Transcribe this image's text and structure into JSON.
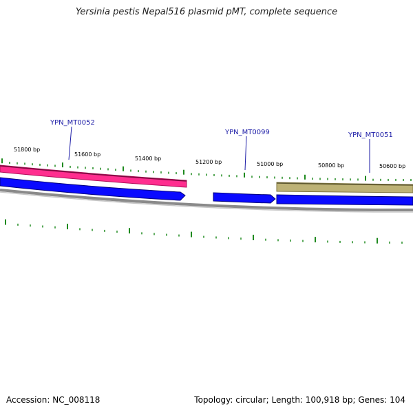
{
  "title": "Yersinia pestis Nepal516 plasmid pMT, complete sequence",
  "footer": {
    "accession": "Accession: NC_008118",
    "summary": "Topology: circular; Length: 100,918 bp; Genes: 104"
  },
  "colors": {
    "tick": "#1f8a1f",
    "gene_label": "#1a1aa6",
    "pink_feature": "#ff2e8f",
    "blue_feature": "#0a0aff",
    "olive_feature": "#bdb276",
    "backbone": "#8a8a8a"
  },
  "scale_labels": [
    {
      "text": "51800 bp",
      "bp": 51800
    },
    {
      "text": "51600 bp",
      "bp": 51600
    },
    {
      "text": "51400 bp",
      "bp": 51400
    },
    {
      "text": "51200 bp",
      "bp": 51200
    },
    {
      "text": "51000 bp",
      "bp": 51000
    },
    {
      "text": "50800 bp",
      "bp": 50800
    },
    {
      "text": "50600 bp",
      "bp": 50600
    }
  ],
  "gene_labels": [
    {
      "text": "YPN_MT0052"
    },
    {
      "text": "YPN_MT0099"
    },
    {
      "text": "YPN_MT0051"
    }
  ]
}
